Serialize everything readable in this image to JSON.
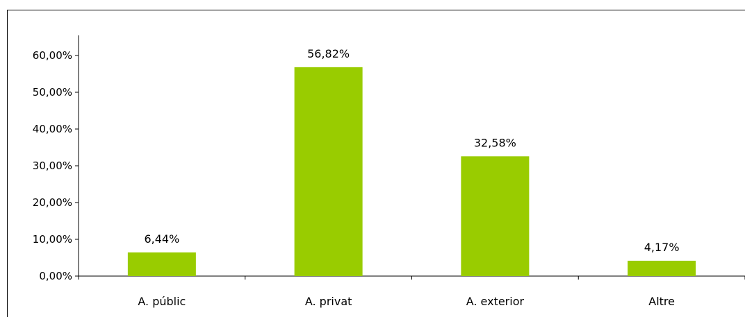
{
  "chart_data": {
    "type": "bar",
    "categories": [
      "A. públic",
      "A. privat",
      "A. exterior",
      "Altre"
    ],
    "values": [
      6.44,
      56.82,
      32.58,
      4.17
    ],
    "data_labels": [
      "6,44%",
      "56,82%",
      "32,58%",
      "4,17%"
    ],
    "ylim": [
      0,
      60
    ],
    "yticks": [
      0,
      10,
      20,
      30,
      40,
      50,
      60
    ],
    "ytick_labels": [
      "0,00%",
      "10,00%",
      "20,00%",
      "30,00%",
      "40,00%",
      "50,00%",
      "60,00%"
    ],
    "bar_color": "#99CC00",
    "grid": false,
    "legend": "none"
  }
}
